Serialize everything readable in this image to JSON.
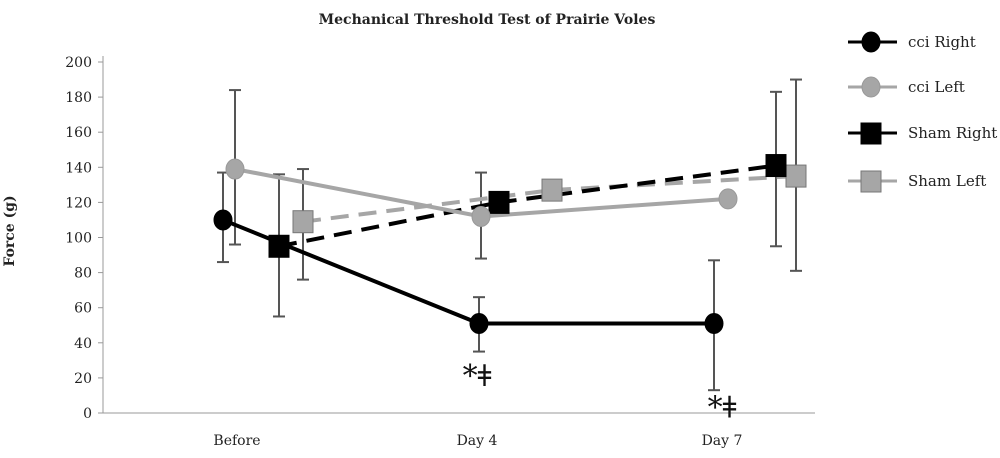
{
  "chart_data": {
    "type": "line",
    "title": "Mechanical Threshold Test of Prairie Voles",
    "xlabel": "",
    "ylabel": "Force (g)",
    "categories": [
      "Before",
      "Day 4",
      "Day 7"
    ],
    "ylim": [
      0,
      200
    ],
    "yticks": [
      0,
      20,
      40,
      60,
      80,
      100,
      120,
      140,
      160,
      180,
      200
    ],
    "grid": false,
    "legend_position": "right",
    "series": [
      {
        "name": "cci Right",
        "values": [
          110,
          51,
          51
        ],
        "err_low": [
          86,
          35,
          13
        ],
        "err_high": [
          137,
          66,
          87
        ],
        "color": "#000000",
        "marker": "circle",
        "dash": false
      },
      {
        "name": "cci Left",
        "values": [
          139,
          112,
          122
        ],
        "err_low": [
          96,
          88,
          null
        ],
        "err_high": [
          184,
          137,
          null
        ],
        "color": "#a6a6a6",
        "marker": "circle",
        "dash": false
      },
      {
        "name": "Sham Right",
        "values": [
          95,
          120,
          141
        ],
        "err_low": [
          55,
          null,
          95
        ],
        "err_high": [
          136,
          null,
          183
        ],
        "color": "#000000",
        "marker": "square",
        "dash": true
      },
      {
        "name": "Sham Left",
        "values": [
          109,
          127,
          135
        ],
        "err_low": [
          76,
          null,
          81
        ],
        "err_high": [
          139,
          null,
          190
        ],
        "color": "#a6a6a6",
        "marker": "square",
        "dash": true
      }
    ],
    "annotations": [
      {
        "text": "*ǂ",
        "category": "Day 4",
        "value": 20
      },
      {
        "text": "*ǂ",
        "category": "Day 7",
        "value": 2
      }
    ]
  }
}
